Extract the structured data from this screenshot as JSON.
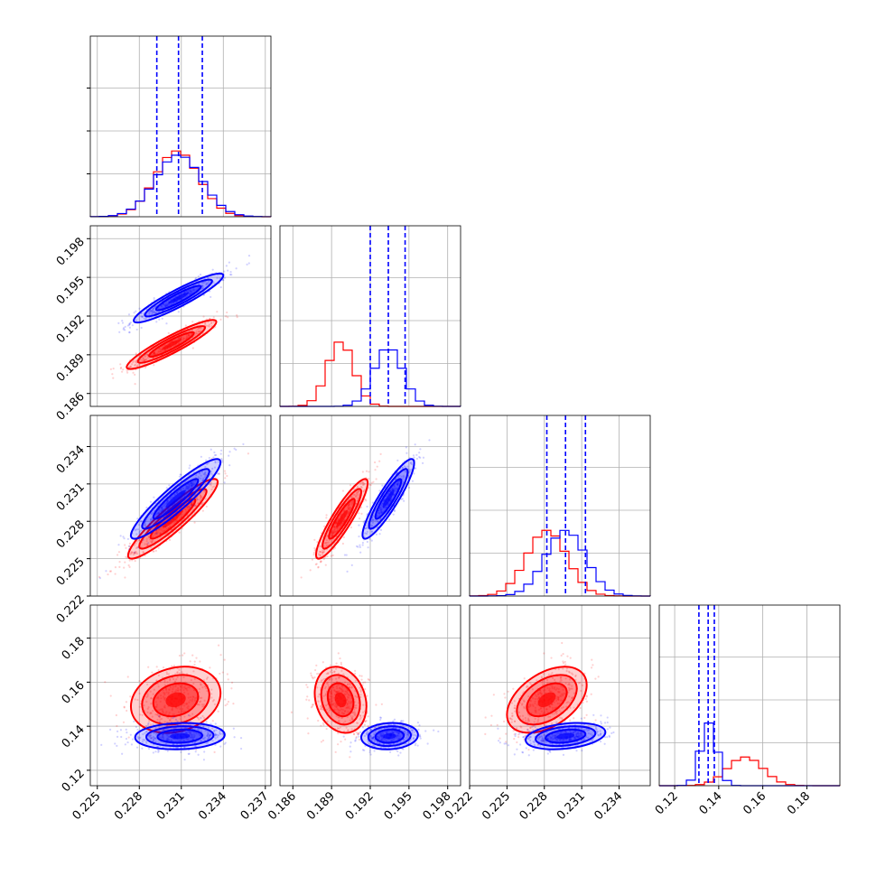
{
  "chart_data": {
    "type": "corner",
    "description_none": "",
    "series": [
      {
        "name": "",
        "color": "#ff0000"
      },
      {
        "name": "",
        "color": "#0000ff"
      }
    ],
    "parameters": [
      {
        "index": 0,
        "range": [
          0.2245,
          0.2374
        ],
        "ticks": [
          0.225,
          0.228,
          0.231,
          0.234,
          0.237
        ],
        "tick_labels": [
          "0.225",
          "0.228",
          "0.231",
          "0.234",
          "0.237"
        ],
        "marginal": {
          "red": {
            "mean": 0.2307,
            "sd": 0.00155
          },
          "blue": {
            "mean": 0.2308,
            "sd": 0.00165
          },
          "quantiles_blue": [
            0.22925,
            0.2308,
            0.2325
          ]
        }
      },
      {
        "index": 1,
        "range": [
          0.185,
          0.199
        ],
        "ticks": [
          0.186,
          0.189,
          0.192,
          0.195,
          0.198
        ],
        "tick_labels": [
          "0.186",
          "0.189",
          "0.192",
          "0.195",
          "0.198"
        ],
        "marginal": {
          "red": {
            "mean": 0.1897,
            "sd": 0.001
          },
          "blue": {
            "mean": 0.1934,
            "sd": 0.0011
          },
          "quantiles_blue": [
            0.192,
            0.1934,
            0.1947
          ]
        }
      },
      {
        "index": 2,
        "range": [
          0.222,
          0.2365
        ],
        "ticks": [
          0.222,
          0.225,
          0.228,
          0.231,
          0.234
        ],
        "tick_labels": [
          "0.222",
          "0.225",
          "0.228",
          "0.231",
          "0.234"
        ],
        "marginal": {
          "red": {
            "mean": 0.2282,
            "sd": 0.0016
          },
          "blue": {
            "mean": 0.2297,
            "sd": 0.0016
          },
          "quantiles_blue": [
            0.2282,
            0.2297,
            0.2313
          ]
        }
      },
      {
        "index": 3,
        "range": [
          0.113,
          0.195
        ],
        "ticks": [
          0.12,
          0.14,
          0.16,
          0.18
        ],
        "tick_labels": [
          "0.12",
          "0.14",
          "0.16",
          "0.18"
        ],
        "marginal": {
          "red": {
            "mean": 0.152,
            "sd": 0.008
          },
          "blue": {
            "mean": 0.1355,
            "sd": 0.0035
          },
          "quantiles_blue": [
            0.131,
            0.1352,
            0.138
          ]
        }
      }
    ],
    "pairs": [
      {
        "row": 1,
        "col": 0,
        "red": {
          "cx": 0.2303,
          "cy": 0.1898,
          "rx": 0.0016,
          "ry": 0.00095,
          "rho": 0.92
        },
        "blue": {
          "cx": 0.2308,
          "cy": 0.1934,
          "rx": 0.0016,
          "ry": 0.00095,
          "rho": 0.92
        }
      },
      {
        "row": 2,
        "col": 0,
        "red": {
          "cx": 0.2304,
          "cy": 0.2282,
          "rx": 0.0016,
          "ry": 0.0016,
          "rho": 0.92
        },
        "blue": {
          "cx": 0.2306,
          "cy": 0.2298,
          "rx": 0.0016,
          "ry": 0.0016,
          "rho": 0.92
        }
      },
      {
        "row": 2,
        "col": 1,
        "red": {
          "cx": 0.1898,
          "cy": 0.2282,
          "rx": 0.001,
          "ry": 0.0016,
          "rho": 0.9
        },
        "blue": {
          "cx": 0.1934,
          "cy": 0.2298,
          "rx": 0.001,
          "ry": 0.0016,
          "rho": 0.9
        }
      },
      {
        "row": 3,
        "col": 0,
        "red": {
          "cx": 0.2306,
          "cy": 0.152,
          "rx": 0.0016,
          "ry": 0.0075,
          "rho": 0.2
        },
        "blue": {
          "cx": 0.2309,
          "cy": 0.1355,
          "rx": 0.0016,
          "ry": 0.003,
          "rho": 0.1
        }
      },
      {
        "row": 3,
        "col": 1,
        "red": {
          "cx": 0.1897,
          "cy": 0.152,
          "rx": 0.001,
          "ry": 0.0075,
          "rho": -0.2
        },
        "blue": {
          "cx": 0.1935,
          "cy": 0.1355,
          "rx": 0.0011,
          "ry": 0.003,
          "rho": 0.1
        }
      },
      {
        "row": 3,
        "col": 2,
        "red": {
          "cx": 0.2282,
          "cy": 0.152,
          "rx": 0.0016,
          "ry": 0.0075,
          "rho": 0.45
        },
        "blue": {
          "cx": 0.2297,
          "cy": 0.1355,
          "rx": 0.0016,
          "ry": 0.003,
          "rho": 0.3
        }
      }
    ],
    "grid": true,
    "legend": "none",
    "xlabel": "",
    "ylabel": ""
  }
}
